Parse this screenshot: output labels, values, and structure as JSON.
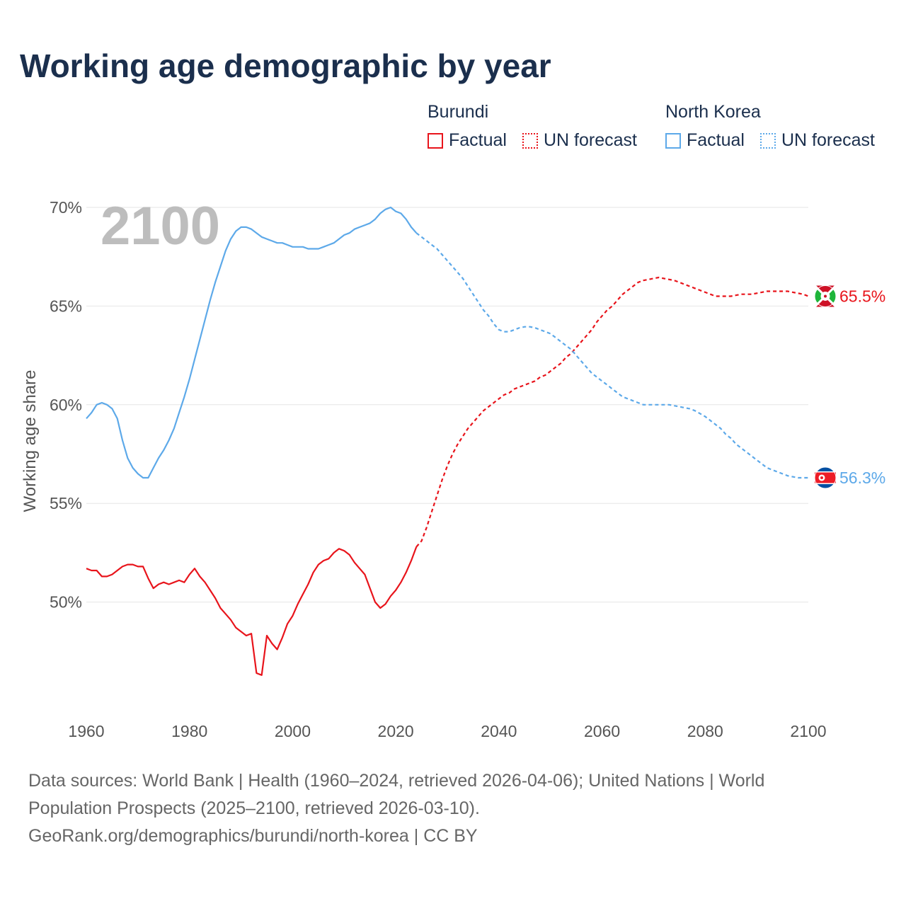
{
  "title": "Working age demographic by year",
  "legend": {
    "groups": [
      {
        "country": "Burundi",
        "color": "#e8141b",
        "factual_label": "Factual",
        "forecast_label": "UN forecast"
      },
      {
        "country": "North Korea",
        "color": "#5da9e9",
        "factual_label": "Factual",
        "forecast_label": "UN forecast"
      }
    ]
  },
  "footer": {
    "line1": "Data sources: World Bank | Health (1960–2024, retrieved 2026-04-06); United Nations | World",
    "line2": "Population Prospects (2025–2100, retrieved 2026-03-10).",
    "line3": "GeoRank.org/demographics/burundi/north-korea | CC BY"
  },
  "chart_data": {
    "type": "line",
    "title": "Working age demographic by year",
    "ylabel": "Working age share",
    "xlabel": "",
    "current_year": "2100",
    "xlim": [
      1960,
      2100
    ],
    "ylim": [
      45,
      70
    ],
    "x_ticks": [
      1960,
      1980,
      2000,
      2020,
      2040,
      2060,
      2080,
      2100
    ],
    "x_tick_labels": [
      "1960",
      "1980",
      "2000",
      "2020",
      "2040",
      "2060",
      "2080",
      "2100"
    ],
    "y_ticks": [
      50,
      55,
      60,
      65,
      70
    ],
    "y_tick_labels": [
      "50%",
      "55%",
      "60%",
      "65%",
      "70%"
    ],
    "series": [
      {
        "name": "Burundi",
        "color": "#e8141b",
        "end_label": "65.5%",
        "flag": "burundi-flag",
        "factual": [
          [
            1960,
            51.7
          ],
          [
            1961,
            51.6
          ],
          [
            1962,
            51.6
          ],
          [
            1963,
            51.3
          ],
          [
            1964,
            51.3
          ],
          [
            1965,
            51.4
          ],
          [
            1966,
            51.6
          ],
          [
            1967,
            51.8
          ],
          [
            1968,
            51.9
          ],
          [
            1969,
            51.9
          ],
          [
            1970,
            51.8
          ],
          [
            1971,
            51.8
          ],
          [
            1972,
            51.2
          ],
          [
            1973,
            50.7
          ],
          [
            1974,
            50.9
          ],
          [
            1975,
            51.0
          ],
          [
            1976,
            50.9
          ],
          [
            1977,
            51.0
          ],
          [
            1978,
            51.1
          ],
          [
            1979,
            51.0
          ],
          [
            1980,
            51.4
          ],
          [
            1981,
            51.7
          ],
          [
            1982,
            51.3
          ],
          [
            1983,
            51.0
          ],
          [
            1984,
            50.6
          ],
          [
            1985,
            50.2
          ],
          [
            1986,
            49.7
          ],
          [
            1987,
            49.4
          ],
          [
            1988,
            49.1
          ],
          [
            1989,
            48.7
          ],
          [
            1990,
            48.5
          ],
          [
            1991,
            48.3
          ],
          [
            1992,
            48.4
          ],
          [
            1993,
            46.4
          ],
          [
            1994,
            46.3
          ],
          [
            1995,
            48.3
          ],
          [
            1996,
            47.9
          ],
          [
            1997,
            47.6
          ],
          [
            1998,
            48.2
          ],
          [
            1999,
            48.9
          ],
          [
            2000,
            49.3
          ],
          [
            2001,
            49.9
          ],
          [
            2002,
            50.4
          ],
          [
            2003,
            50.9
          ],
          [
            2004,
            51.5
          ],
          [
            2005,
            51.9
          ],
          [
            2006,
            52.1
          ],
          [
            2007,
            52.2
          ],
          [
            2008,
            52.5
          ],
          [
            2009,
            52.7
          ],
          [
            2010,
            52.6
          ],
          [
            2011,
            52.4
          ],
          [
            2012,
            52.0
          ],
          [
            2013,
            51.7
          ],
          [
            2014,
            51.4
          ],
          [
            2015,
            50.7
          ],
          [
            2016,
            50.0
          ],
          [
            2017,
            49.7
          ],
          [
            2018,
            49.9
          ],
          [
            2019,
            50.3
          ],
          [
            2020,
            50.6
          ],
          [
            2021,
            51.0
          ],
          [
            2022,
            51.5
          ],
          [
            2023,
            52.1
          ],
          [
            2024,
            52.8
          ]
        ],
        "forecast": [
          [
            2024,
            52.8
          ],
          [
            2025,
            53.1
          ],
          [
            2026,
            53.8
          ],
          [
            2027,
            54.6
          ],
          [
            2028,
            55.4
          ],
          [
            2029,
            56.2
          ],
          [
            2030,
            56.9
          ],
          [
            2031,
            57.5
          ],
          [
            2032,
            58.0
          ],
          [
            2033,
            58.4
          ],
          [
            2034,
            58.8
          ],
          [
            2035,
            59.1
          ],
          [
            2036,
            59.4
          ],
          [
            2037,
            59.7
          ],
          [
            2038,
            59.9
          ],
          [
            2039,
            60.1
          ],
          [
            2040,
            60.3
          ],
          [
            2041,
            60.5
          ],
          [
            2042,
            60.6
          ],
          [
            2043,
            60.8
          ],
          [
            2044,
            60.9
          ],
          [
            2045,
            61.0
          ],
          [
            2046,
            61.1
          ],
          [
            2047,
            61.2
          ],
          [
            2048,
            61.4
          ],
          [
            2049,
            61.5
          ],
          [
            2050,
            61.7
          ],
          [
            2051,
            61.9
          ],
          [
            2052,
            62.1
          ],
          [
            2053,
            62.4
          ],
          [
            2054,
            62.6
          ],
          [
            2055,
            62.9
          ],
          [
            2056,
            63.2
          ],
          [
            2057,
            63.5
          ],
          [
            2058,
            63.8
          ],
          [
            2059,
            64.2
          ],
          [
            2060,
            64.5
          ],
          [
            2061,
            64.8
          ],
          [
            2062,
            65.0
          ],
          [
            2063,
            65.3
          ],
          [
            2064,
            65.6
          ],
          [
            2065,
            65.8
          ],
          [
            2066,
            66.0
          ],
          [
            2067,
            66.2
          ],
          [
            2068,
            66.3
          ],
          [
            2069,
            66.35
          ],
          [
            2070,
            66.4
          ],
          [
            2071,
            66.45
          ],
          [
            2072,
            66.4
          ],
          [
            2073,
            66.35
          ],
          [
            2074,
            66.3
          ],
          [
            2075,
            66.2
          ],
          [
            2076,
            66.1
          ],
          [
            2077,
            66.0
          ],
          [
            2078,
            65.9
          ],
          [
            2079,
            65.8
          ],
          [
            2080,
            65.7
          ],
          [
            2081,
            65.6
          ],
          [
            2082,
            65.5
          ],
          [
            2083,
            65.5
          ],
          [
            2084,
            65.5
          ],
          [
            2085,
            65.5
          ],
          [
            2086,
            65.55
          ],
          [
            2087,
            65.6
          ],
          [
            2088,
            65.6
          ],
          [
            2089,
            65.6
          ],
          [
            2090,
            65.65
          ],
          [
            2091,
            65.7
          ],
          [
            2092,
            65.75
          ],
          [
            2093,
            65.75
          ],
          [
            2094,
            65.75
          ],
          [
            2095,
            65.75
          ],
          [
            2096,
            65.75
          ],
          [
            2097,
            65.7
          ],
          [
            2098,
            65.65
          ],
          [
            2099,
            65.6
          ],
          [
            2100,
            65.5
          ]
        ]
      },
      {
        "name": "North Korea",
        "color": "#5da9e9",
        "end_label": "56.3%",
        "flag": "north-korea-flag",
        "factual": [
          [
            1960,
            59.3
          ],
          [
            1961,
            59.6
          ],
          [
            1962,
            60.0
          ],
          [
            1963,
            60.1
          ],
          [
            1964,
            60.0
          ],
          [
            1965,
            59.8
          ],
          [
            1966,
            59.3
          ],
          [
            1967,
            58.2
          ],
          [
            1968,
            57.3
          ],
          [
            1969,
            56.8
          ],
          [
            1970,
            56.5
          ],
          [
            1971,
            56.3
          ],
          [
            1972,
            56.3
          ],
          [
            1973,
            56.8
          ],
          [
            1974,
            57.3
          ],
          [
            1975,
            57.7
          ],
          [
            1976,
            58.2
          ],
          [
            1977,
            58.8
          ],
          [
            1978,
            59.6
          ],
          [
            1979,
            60.4
          ],
          [
            1980,
            61.3
          ],
          [
            1981,
            62.3
          ],
          [
            1982,
            63.3
          ],
          [
            1983,
            64.3
          ],
          [
            1984,
            65.3
          ],
          [
            1985,
            66.2
          ],
          [
            1986,
            67.0
          ],
          [
            1987,
            67.8
          ],
          [
            1988,
            68.4
          ],
          [
            1989,
            68.8
          ],
          [
            1990,
            69.0
          ],
          [
            1991,
            69.0
          ],
          [
            1992,
            68.9
          ],
          [
            1993,
            68.7
          ],
          [
            1994,
            68.5
          ],
          [
            1995,
            68.4
          ],
          [
            1996,
            68.3
          ],
          [
            1997,
            68.2
          ],
          [
            1998,
            68.2
          ],
          [
            1999,
            68.1
          ],
          [
            2000,
            68.0
          ],
          [
            2001,
            68.0
          ],
          [
            2002,
            68.0
          ],
          [
            2003,
            67.9
          ],
          [
            2004,
            67.9
          ],
          [
            2005,
            67.9
          ],
          [
            2006,
            68.0
          ],
          [
            2007,
            68.1
          ],
          [
            2008,
            68.2
          ],
          [
            2009,
            68.4
          ],
          [
            2010,
            68.6
          ],
          [
            2011,
            68.7
          ],
          [
            2012,
            68.9
          ],
          [
            2013,
            69.0
          ],
          [
            2014,
            69.1
          ],
          [
            2015,
            69.2
          ],
          [
            2016,
            69.4
          ],
          [
            2017,
            69.7
          ],
          [
            2018,
            69.9
          ],
          [
            2019,
            70.0
          ],
          [
            2020,
            69.8
          ],
          [
            2021,
            69.7
          ],
          [
            2022,
            69.4
          ],
          [
            2023,
            69.0
          ],
          [
            2024,
            68.7
          ]
        ],
        "forecast": [
          [
            2024,
            68.7
          ],
          [
            2025,
            68.5
          ],
          [
            2026,
            68.3
          ],
          [
            2027,
            68.1
          ],
          [
            2028,
            67.9
          ],
          [
            2029,
            67.6
          ],
          [
            2030,
            67.3
          ],
          [
            2031,
            67.0
          ],
          [
            2032,
            66.7
          ],
          [
            2033,
            66.4
          ],
          [
            2034,
            66.0
          ],
          [
            2035,
            65.6
          ],
          [
            2036,
            65.2
          ],
          [
            2037,
            64.8
          ],
          [
            2038,
            64.5
          ],
          [
            2039,
            64.1
          ],
          [
            2040,
            63.8
          ],
          [
            2041,
            63.7
          ],
          [
            2042,
            63.7
          ],
          [
            2043,
            63.8
          ],
          [
            2044,
            63.9
          ],
          [
            2045,
            63.95
          ],
          [
            2046,
            63.95
          ],
          [
            2047,
            63.9
          ],
          [
            2048,
            63.8
          ],
          [
            2049,
            63.7
          ],
          [
            2050,
            63.6
          ],
          [
            2051,
            63.4
          ],
          [
            2052,
            63.2
          ],
          [
            2053,
            63.0
          ],
          [
            2054,
            62.8
          ],
          [
            2055,
            62.5
          ],
          [
            2056,
            62.2
          ],
          [
            2057,
            61.9
          ],
          [
            2058,
            61.6
          ],
          [
            2059,
            61.4
          ],
          [
            2060,
            61.2
          ],
          [
            2061,
            61.0
          ],
          [
            2062,
            60.8
          ],
          [
            2063,
            60.6
          ],
          [
            2064,
            60.4
          ],
          [
            2065,
            60.3
          ],
          [
            2066,
            60.2
          ],
          [
            2067,
            60.1
          ],
          [
            2068,
            60.0
          ],
          [
            2069,
            60.0
          ],
          [
            2070,
            60.0
          ],
          [
            2071,
            60.0
          ],
          [
            2072,
            60.0
          ],
          [
            2073,
            60.0
          ],
          [
            2074,
            59.95
          ],
          [
            2075,
            59.9
          ],
          [
            2076,
            59.85
          ],
          [
            2077,
            59.8
          ],
          [
            2078,
            59.7
          ],
          [
            2079,
            59.55
          ],
          [
            2080,
            59.4
          ],
          [
            2081,
            59.2
          ],
          [
            2082,
            59.0
          ],
          [
            2083,
            58.8
          ],
          [
            2084,
            58.5
          ],
          [
            2085,
            58.3
          ],
          [
            2086,
            58.0
          ],
          [
            2087,
            57.8
          ],
          [
            2088,
            57.6
          ],
          [
            2089,
            57.4
          ],
          [
            2090,
            57.2
          ],
          [
            2091,
            57.0
          ],
          [
            2092,
            56.8
          ],
          [
            2093,
            56.7
          ],
          [
            2094,
            56.6
          ],
          [
            2095,
            56.5
          ],
          [
            2096,
            56.4
          ],
          [
            2097,
            56.35
          ],
          [
            2098,
            56.3
          ],
          [
            2099,
            56.3
          ],
          [
            2100,
            56.3
          ]
        ]
      }
    ]
  }
}
